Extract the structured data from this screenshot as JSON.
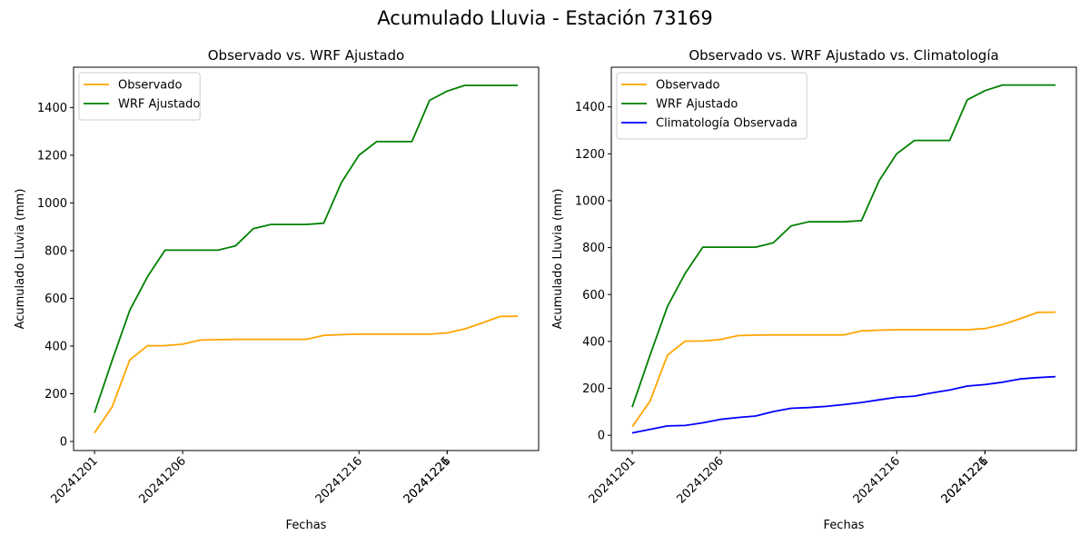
{
  "figure": {
    "title": "Acumulado Lluvia - Estación 73169"
  },
  "chart_data": [
    {
      "type": "line",
      "title": "Observado vs. WRF Ajustado",
      "xlabel": "Fechas",
      "ylabel": "Acumulado Lluvia (mm)",
      "x": [
        "20241201",
        "20241202",
        "20241203",
        "20241204",
        "20241205",
        "20241206",
        "20241207",
        "20241208",
        "20241209",
        "20241210",
        "20241211",
        "20241212",
        "20241213",
        "20241214",
        "20241215",
        "20241216",
        "20241217",
        "20241218",
        "20241219",
        "20241220",
        "20241221",
        "20241222",
        "20241223",
        "20241224",
        "20241225"
      ],
      "xticks": [
        "20241201",
        "20241206",
        "20241216",
        "20241221",
        "20241226"
      ],
      "yticks": [
        0,
        200,
        400,
        600,
        800,
        1000,
        1200,
        1400
      ],
      "ylim": [
        -38,
        1569
      ],
      "legend": "top-left",
      "series": [
        {
          "name": "Observado",
          "color": "#FFA500",
          "values": [
            36,
            145,
            342,
            401,
            402,
            408,
            425,
            427,
            428,
            428,
            428,
            428,
            428,
            445,
            448,
            450,
            450,
            450,
            450,
            450,
            455,
            472,
            497,
            524,
            525
          ]
        },
        {
          "name": "WRF Ajustado",
          "color": "#008000",
          "values": [
            120,
            340,
            550,
            690,
            802,
            802,
            802,
            802,
            820,
            892,
            910,
            910,
            910,
            915,
            1085,
            1200,
            1257,
            1257,
            1257,
            1430,
            1469,
            1493,
            1493,
            1493,
            1493
          ]
        }
      ]
    },
    {
      "type": "line",
      "title": "Observado vs. WRF Ajustado vs. Climatología",
      "xlabel": "Fechas",
      "ylabel": "Acumulado Lluvia (mm)",
      "x": [
        "20241201",
        "20241202",
        "20241203",
        "20241204",
        "20241205",
        "20241206",
        "20241207",
        "20241208",
        "20241209",
        "20241210",
        "20241211",
        "20241212",
        "20241213",
        "20241214",
        "20241215",
        "20241216",
        "20241217",
        "20241218",
        "20241219",
        "20241220",
        "20241221",
        "20241222",
        "20241223",
        "20241224",
        "20241225"
      ],
      "xticks": [
        "20241201",
        "20241206",
        "20241216",
        "20241221",
        "20241226"
      ],
      "yticks": [
        0,
        200,
        400,
        600,
        800,
        1000,
        1200,
        1400
      ],
      "ylim": [
        -65,
        1569
      ],
      "legend": "top-left",
      "series": [
        {
          "name": "Observado",
          "color": "#FFA500",
          "values": [
            36,
            145,
            342,
            401,
            402,
            408,
            425,
            427,
            428,
            428,
            428,
            428,
            428,
            445,
            448,
            450,
            450,
            450,
            450,
            450,
            455,
            472,
            497,
            524,
            525
          ]
        },
        {
          "name": "WRF Ajustado",
          "color": "#008000",
          "values": [
            120,
            340,
            550,
            690,
            802,
            802,
            802,
            802,
            820,
            892,
            910,
            910,
            910,
            915,
            1085,
            1200,
            1257,
            1257,
            1257,
            1430,
            1469,
            1493,
            1493,
            1493,
            1493
          ]
        },
        {
          "name": "Climatología Observada",
          "color": "#0000FF",
          "values": [
            10,
            25,
            40,
            42,
            53,
            68,
            76,
            82,
            101,
            115,
            118,
            123,
            131,
            140,
            151,
            162,
            167,
            181,
            193,
            210,
            216,
            226,
            240,
            246,
            250
          ]
        }
      ]
    }
  ]
}
